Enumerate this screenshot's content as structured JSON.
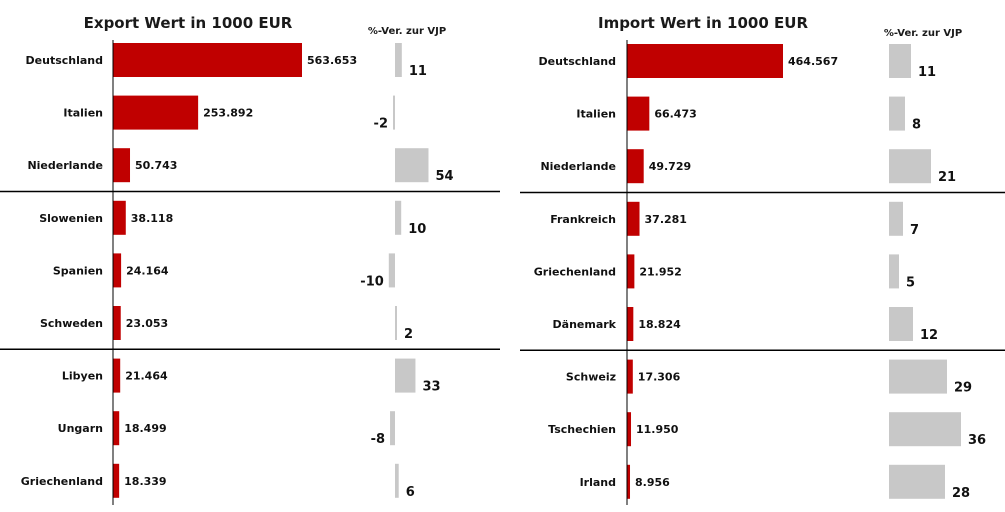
{
  "chart_data": [
    {
      "type": "bar",
      "title": "Export Wert in 1000 EUR",
      "change_header": "%-Ver. zur VJP",
      "categories": [
        "Deutschland",
        "Italien",
        "Niederlande",
        "Slowenien",
        "Spanien",
        "Schweden",
        "Libyen",
        "Ungarn",
        "Griechenland"
      ],
      "value_labels": [
        "563.653",
        "253.892",
        "50.743",
        "38.118",
        "24.164",
        "23.053",
        "21.464",
        "18.499",
        "18.339"
      ],
      "values": [
        563653,
        253892,
        50743,
        38118,
        24164,
        23053,
        21464,
        18499,
        18339
      ],
      "change_values": [
        11,
        -2,
        54,
        10,
        -10,
        2,
        33,
        -8,
        6
      ],
      "group_separators_after": [
        3,
        6
      ],
      "colors": {
        "value_bar": "#c00000",
        "change_bar": "#c8c8c8"
      }
    },
    {
      "type": "bar",
      "title": "Import Wert in 1000 EUR",
      "change_header": "%-Ver. zur VJP",
      "categories": [
        "Deutschland",
        "Italien",
        "Niederlande",
        "Frankreich",
        "Griechenland",
        "Dänemark",
        "Schweiz",
        "Tschechien",
        "Irland"
      ],
      "value_labels": [
        "464.567",
        "66.473",
        "49.729",
        "37.281",
        "21.952",
        "18.824",
        "17.306",
        "11.950",
        "8.956"
      ],
      "values": [
        464567,
        66473,
        49729,
        37281,
        21952,
        18824,
        17306,
        11950,
        8956
      ],
      "change_values": [
        11,
        8,
        21,
        7,
        5,
        12,
        29,
        36,
        28
      ],
      "group_separators_after": [
        3,
        6
      ],
      "colors": {
        "value_bar": "#c00000",
        "change_bar": "#c8c8c8"
      }
    }
  ]
}
